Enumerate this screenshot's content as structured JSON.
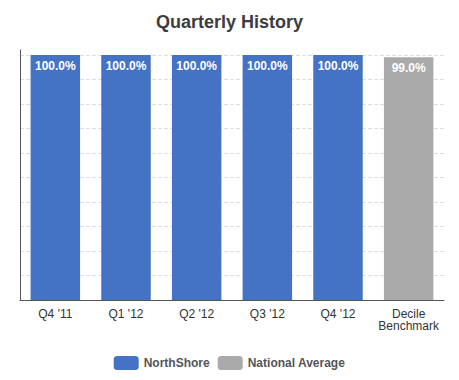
{
  "chart_data": {
    "type": "bar",
    "title": "Quarterly History",
    "categories": [
      "Q4 '11",
      "Q1 '12",
      "Q2 '12",
      "Q3 '12",
      "Q4 '12",
      "Decile\nBenchmark"
    ],
    "series": [
      {
        "name": "NorthShore",
        "color": "#4472C4",
        "values": [
          100.0,
          100.0,
          100.0,
          100.0,
          100.0,
          null
        ],
        "value_labels": [
          "100.0%",
          "100.0%",
          "100.0%",
          "100.0%",
          "100.0%",
          null
        ]
      },
      {
        "name": "National Average",
        "color": "#AAAAAA",
        "values": [
          null,
          null,
          null,
          null,
          null,
          99.0
        ],
        "value_labels": [
          null,
          null,
          null,
          null,
          null,
          "99.0%"
        ]
      }
    ],
    "ylim": [
      0,
      102
    ],
    "yticks": [
      0,
      10,
      20,
      30,
      40,
      50,
      60,
      70,
      80,
      90,
      100
    ],
    "grid": true,
    "legend": "bottom",
    "data_labels": true,
    "tick_labels": "x"
  }
}
